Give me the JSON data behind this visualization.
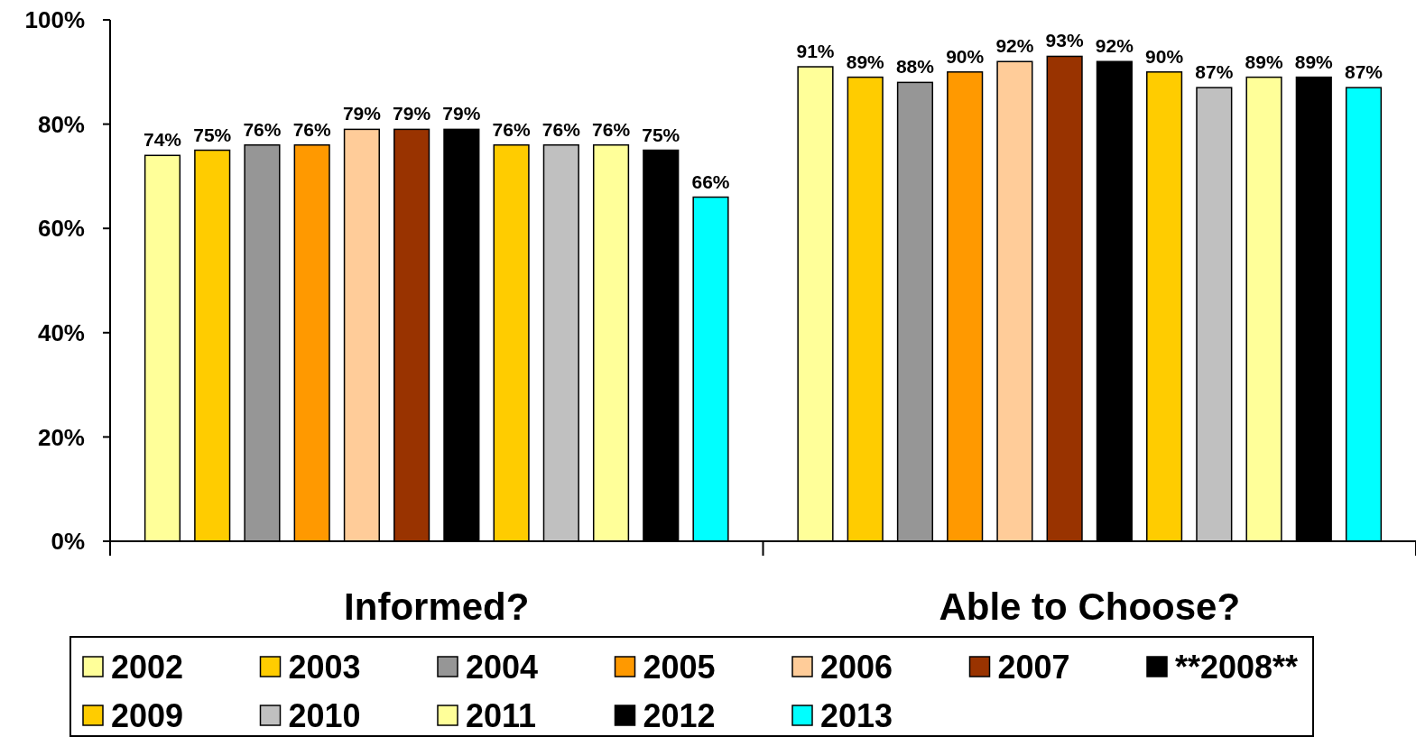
{
  "chart_data": {
    "type": "bar",
    "categories": [
      "Informed?",
      "Able to Choose?"
    ],
    "series": [
      {
        "name": "2002",
        "color": "#ffff99",
        "values": [
          74,
          91
        ],
        "value_labels": [
          "74%",
          "91%"
        ]
      },
      {
        "name": "2003",
        "color": "#ffcc00",
        "values": [
          75,
          89
        ],
        "value_labels": [
          "75%",
          "89%"
        ]
      },
      {
        "name": "2004",
        "color": "#969696",
        "values": [
          76,
          88
        ],
        "value_labels": [
          "76%",
          "88%"
        ]
      },
      {
        "name": "2005",
        "color": "#ff9900",
        "values": [
          76,
          90
        ],
        "value_labels": [
          "76%",
          "90%"
        ]
      },
      {
        "name": "2006",
        "color": "#ffcc99",
        "values": [
          79,
          92
        ],
        "value_labels": [
          "79%",
          "92%"
        ]
      },
      {
        "name": "2007",
        "color": "#993300",
        "values": [
          79,
          93
        ],
        "value_labels": [
          "79%",
          "93%"
        ]
      },
      {
        "name": "**2008**",
        "color": "#000000",
        "values": [
          79,
          92
        ],
        "value_labels": [
          "79%",
          "92%"
        ]
      },
      {
        "name": "2009",
        "color": "#ffcc00",
        "values": [
          76,
          90
        ],
        "value_labels": [
          "76%",
          "90%"
        ]
      },
      {
        "name": "2010",
        "color": "#c0c0c0",
        "values": [
          76,
          87
        ],
        "value_labels": [
          "76%",
          "87%"
        ]
      },
      {
        "name": "2011",
        "color": "#ffff99",
        "values": [
          76,
          89
        ],
        "value_labels": [
          "76%",
          "89%"
        ]
      },
      {
        "name": "2012",
        "color": "#000000",
        "values": [
          75,
          89
        ],
        "value_labels": [
          "75%",
          "89%"
        ]
      },
      {
        "name": "2013",
        "color": "#00ffff",
        "values": [
          66,
          87
        ],
        "value_labels": [
          "66%",
          "87%"
        ]
      }
    ],
    "ylim": [
      0,
      100
    ],
    "yticks": [
      {
        "value": 0,
        "label": "0%"
      },
      {
        "value": 20,
        "label": "20%"
      },
      {
        "value": 40,
        "label": "40%"
      },
      {
        "value": 60,
        "label": "60%"
      },
      {
        "value": 80,
        "label": "80%"
      },
      {
        "value": 100,
        "label": "100%"
      }
    ],
    "grid": false,
    "legend": "bottom"
  }
}
